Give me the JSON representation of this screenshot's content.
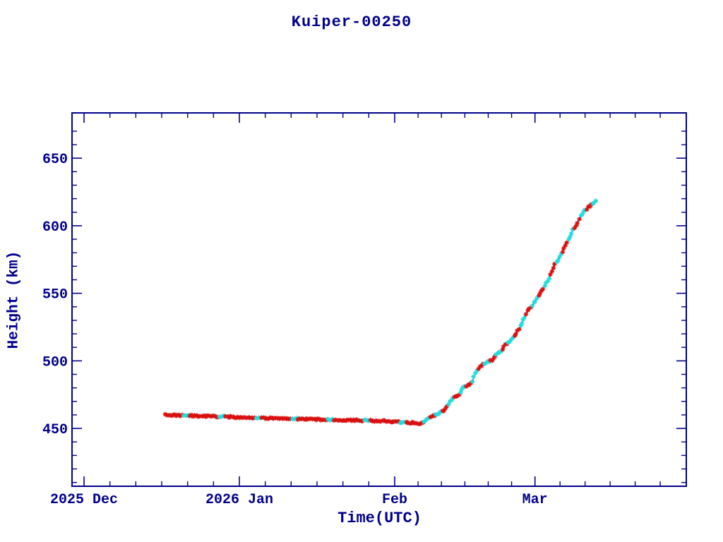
{
  "window": {
    "background": "#ffffff"
  },
  "chart_data": {
    "type": "scatter",
    "title": "Kuiper-00250",
    "xlabel": "Time(UTC)",
    "ylabel": "Height (km)",
    "legend": "none",
    "grid": "off",
    "frame": "box-with-inward-ticks",
    "colors": {
      "axis": "#00008b",
      "primary_marker": "#d90f0f",
      "secondary_marker": "#25dada",
      "connector_line": "#00008b"
    },
    "marker": "asterisk",
    "x_axis": {
      "epoch": "2025-12-01",
      "unit": "days since epoch",
      "min": -2.4,
      "max": 120.2,
      "major_ticks": [
        {
          "day": 0,
          "label": "2025 Dec"
        },
        {
          "day": 31,
          "label": "2026 Jan"
        },
        {
          "day": 62,
          "label": "Feb"
        },
        {
          "day": 90,
          "label": "Mar"
        }
      ],
      "minor_interior_per_interval": 5,
      "trailing_minor_step_days": 5,
      "trailing_minor_count": 5
    },
    "y_axis": {
      "min_km": 407.2,
      "max_km": 683.5,
      "major_ticks_km": [
        450,
        500,
        550,
        600,
        650
      ],
      "major_tick_labels": [
        "450",
        "500",
        "550",
        "600",
        "650"
      ],
      "minor_step_km": 10,
      "minor_min_km": 410,
      "minor_max_km": 670
    },
    "trajectory": {
      "description": "satellite height vs time; flat decay ~460->453 km from mid-Dec to early Feb, then orbit raise to ~618 km by mid-Mar",
      "points_day_km": [
        [
          16.3,
          459.9
        ],
        [
          21.3,
          459.4
        ],
        [
          26.9,
          458.9
        ],
        [
          32.5,
          458.1
        ],
        [
          38.2,
          457.6
        ],
        [
          43.8,
          457.0
        ],
        [
          49.5,
          456.5
        ],
        [
          55.1,
          456.0
        ],
        [
          60.0,
          455.4
        ],
        [
          63.5,
          454.7
        ],
        [
          65.7,
          454.1
        ],
        [
          67.1,
          453.4
        ],
        [
          68.0,
          455.7
        ],
        [
          68.9,
          457.8
        ],
        [
          69.9,
          459.4
        ],
        [
          70.9,
          461.5
        ],
        [
          72.0,
          463.6
        ],
        [
          72.8,
          468.8
        ],
        [
          73.8,
          473.0
        ],
        [
          74.8,
          475.1
        ],
        [
          75.8,
          480.3
        ],
        [
          76.7,
          482.4
        ],
        [
          77.4,
          484.0
        ],
        [
          78.2,
          491.3
        ],
        [
          79.0,
          495.3
        ],
        [
          79.9,
          498.4
        ],
        [
          80.7,
          499.5
        ],
        [
          81.6,
          501.0
        ],
        [
          82.4,
          505.2
        ],
        [
          83.3,
          507.3
        ],
        [
          84.1,
          512.5
        ],
        [
          85.0,
          514.1
        ],
        [
          85.8,
          518.3
        ],
        [
          86.8,
          523.5
        ],
        [
          87.8,
          530.8
        ],
        [
          88.6,
          537.1
        ],
        [
          89.3,
          540.2
        ],
        [
          90.0,
          543.9
        ],
        [
          90.9,
          549.6
        ],
        [
          91.7,
          553.8
        ],
        [
          92.6,
          560.1
        ],
        [
          93.4,
          565.8
        ],
        [
          94.1,
          572.6
        ],
        [
          94.7,
          575.2
        ],
        [
          95.4,
          580.4
        ],
        [
          96.1,
          585.6
        ],
        [
          96.9,
          591.4
        ],
        [
          97.6,
          596.6
        ],
        [
          98.4,
          601.8
        ],
        [
          99.1,
          607.0
        ],
        [
          99.8,
          610.2
        ],
        [
          100.5,
          613.3
        ],
        [
          101.2,
          615.9
        ],
        [
          101.7,
          617.5
        ],
        [
          102.3,
          618.0
        ]
      ]
    },
    "marker_pattern": {
      "step_days": 0.3,
      "cluster_size": 4,
      "flat_until_day": 67.1,
      "flat_secondary_every_nth_cluster": 6,
      "rise_alternates": true
    }
  }
}
